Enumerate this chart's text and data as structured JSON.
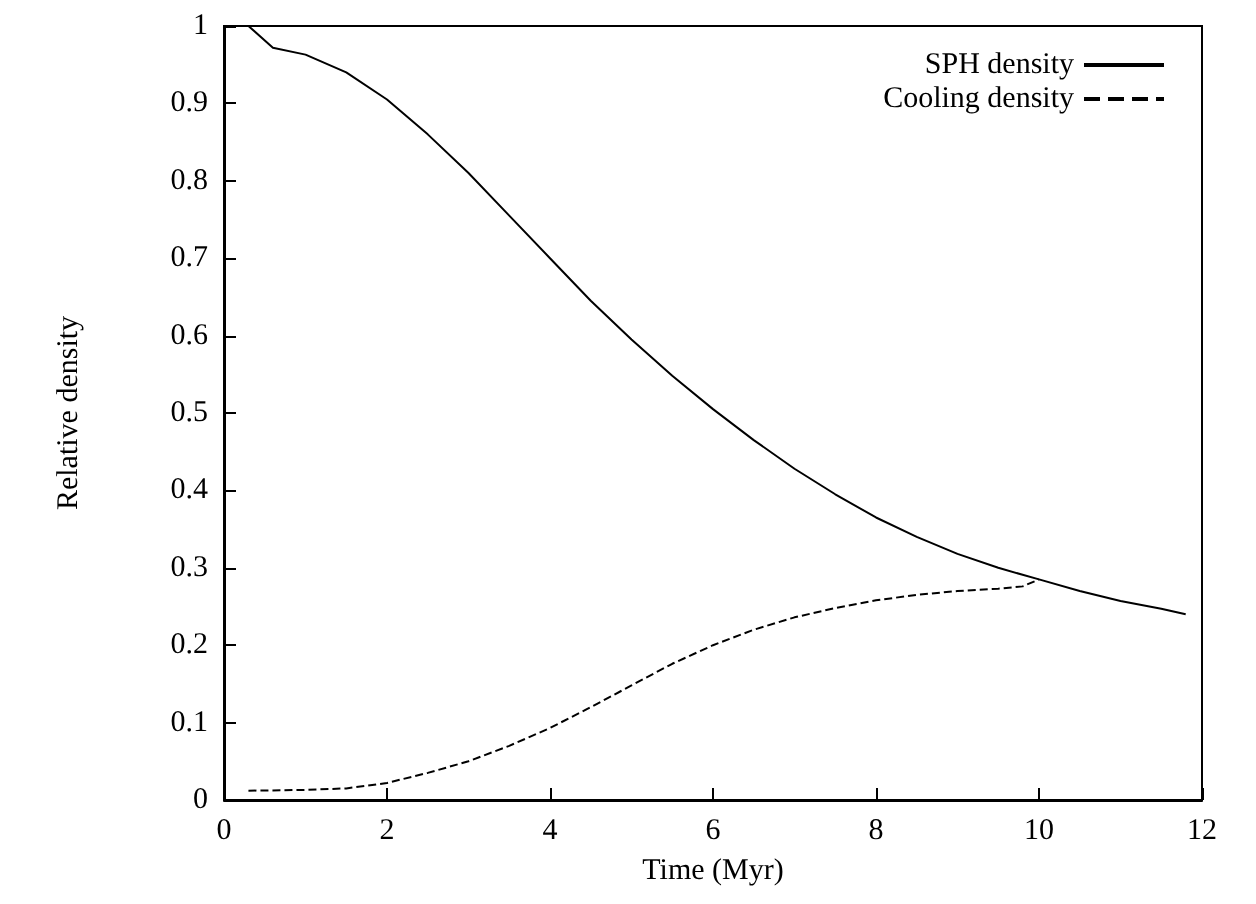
{
  "chart_data": {
    "type": "line",
    "xlabel": "Time (Myr)",
    "ylabel": "Relative density",
    "xlim": [
      0,
      12
    ],
    "xticks": [
      0,
      2,
      4,
      6,
      8,
      10,
      12
    ],
    "ylim": [
      0,
      1
    ],
    "yticks": [
      0,
      0.1,
      0.2,
      0.3,
      0.4,
      0.5,
      0.6,
      0.7,
      0.8,
      0.9,
      1
    ],
    "grid": false,
    "legend": "top right",
    "marker": "none",
    "series": [
      {
        "name": "SPH density",
        "color": "#000000",
        "line_style": "solid",
        "x": [
          0.3,
          0.6,
          1,
          1.5,
          2,
          2.5,
          3,
          3.5,
          4,
          4.5,
          5,
          5.5,
          6,
          6.5,
          7,
          7.5,
          8,
          8.5,
          9,
          9.5,
          10,
          10.5,
          11,
          11.5,
          11.8
        ],
        "values": [
          1.0,
          0.972,
          0.963,
          0.94,
          0.905,
          0.86,
          0.81,
          0.755,
          0.7,
          0.645,
          0.595,
          0.548,
          0.505,
          0.465,
          0.428,
          0.395,
          0.365,
          0.34,
          0.318,
          0.3,
          0.285,
          0.27,
          0.257,
          0.247,
          0.24
        ]
      },
      {
        "name": "Cooling density",
        "color": "#000000",
        "line_style": "dashed",
        "x": [
          0.3,
          1,
          1.5,
          2,
          2.5,
          3,
          3.5,
          4,
          4.5,
          5,
          5.5,
          6,
          6.5,
          7,
          7.5,
          8,
          8.5,
          9,
          9.5,
          9.8,
          10
        ],
        "values": [
          0.012,
          0.013,
          0.015,
          0.022,
          0.035,
          0.05,
          0.07,
          0.093,
          0.12,
          0.148,
          0.176,
          0.2,
          0.22,
          0.236,
          0.248,
          0.258,
          0.265,
          0.27,
          0.273,
          0.276,
          0.285
        ]
      }
    ]
  }
}
